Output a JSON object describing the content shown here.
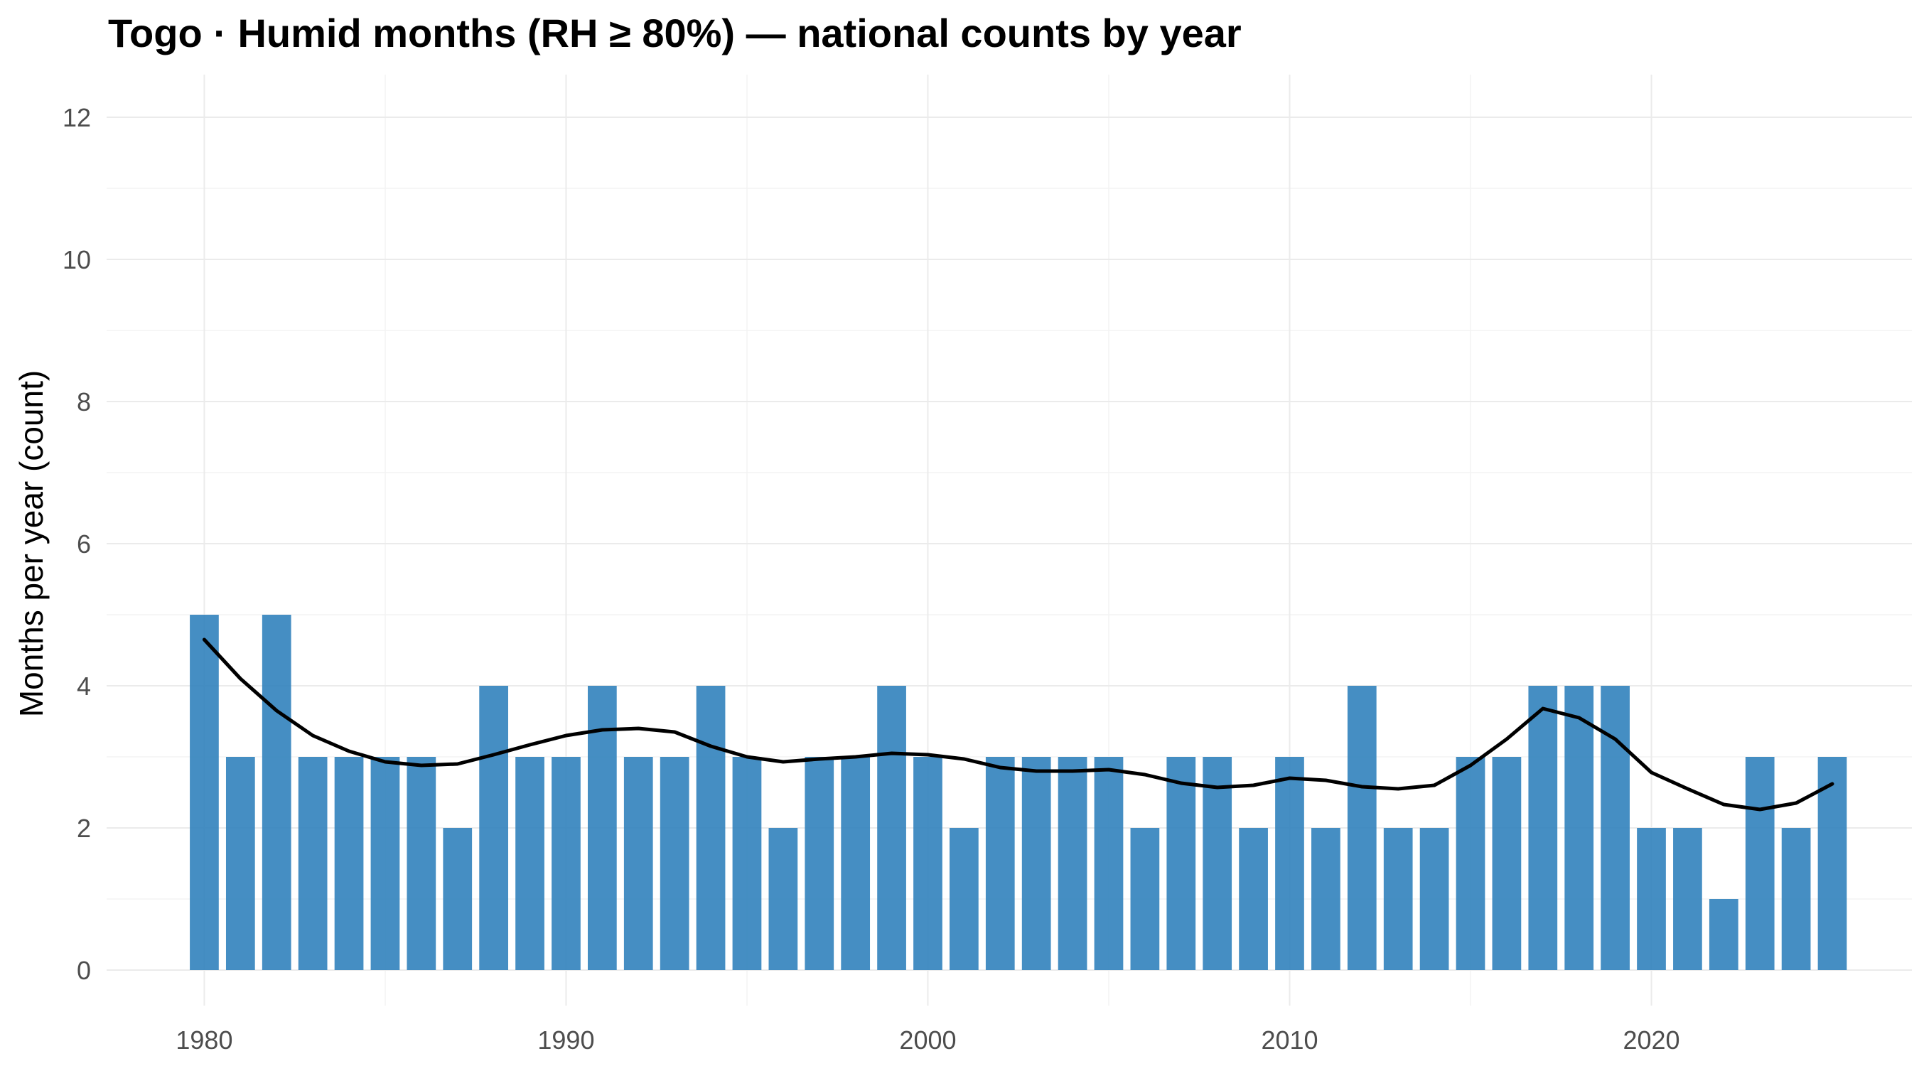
{
  "chart_data": {
    "type": "bar",
    "title": "Togo · Humid months (RH ≥ 80%) — national counts by year",
    "ylabel": "Months per year (count)",
    "xlabel": "",
    "xlim": [
      1977.3,
      2027.2
    ],
    "ylim": [
      -0.5,
      12.6
    ],
    "x_ticks": [
      1980,
      1990,
      2000,
      2010,
      2020
    ],
    "y_ticks": [
      0,
      2,
      4,
      6,
      8,
      10,
      12
    ],
    "grid": true,
    "legend": "none",
    "colors": {
      "bar": "#3182bd",
      "trend": "#000000"
    },
    "series": [
      {
        "values": [
          {
            "x": 1980,
            "y": 5
          },
          {
            "x": 1981,
            "y": 3
          },
          {
            "x": 1982,
            "y": 5
          },
          {
            "x": 1983,
            "y": 3
          },
          {
            "x": 1984,
            "y": 3
          },
          {
            "x": 1985,
            "y": 3
          },
          {
            "x": 1986,
            "y": 3
          },
          {
            "x": 1987,
            "y": 2
          },
          {
            "x": 1988,
            "y": 4
          },
          {
            "x": 1989,
            "y": 3
          },
          {
            "x": 1990,
            "y": 3
          },
          {
            "x": 1991,
            "y": 4
          },
          {
            "x": 1992,
            "y": 3
          },
          {
            "x": 1993,
            "y": 3
          },
          {
            "x": 1994,
            "y": 4
          },
          {
            "x": 1995,
            "y": 3
          },
          {
            "x": 1996,
            "y": 2
          },
          {
            "x": 1997,
            "y": 3
          },
          {
            "x": 1998,
            "y": 3
          },
          {
            "x": 1999,
            "y": 4
          },
          {
            "x": 2000,
            "y": 3
          },
          {
            "x": 2001,
            "y": 2
          },
          {
            "x": 2002,
            "y": 3
          },
          {
            "x": 2003,
            "y": 3
          },
          {
            "x": 2004,
            "y": 3
          },
          {
            "x": 2005,
            "y": 3
          },
          {
            "x": 2006,
            "y": 2
          },
          {
            "x": 2007,
            "y": 3
          },
          {
            "x": 2008,
            "y": 3
          },
          {
            "x": 2009,
            "y": 2
          },
          {
            "x": 2010,
            "y": 3
          },
          {
            "x": 2011,
            "y": 2
          },
          {
            "x": 2012,
            "y": 4
          },
          {
            "x": 2013,
            "y": 2
          },
          {
            "x": 2014,
            "y": 2
          },
          {
            "x": 2015,
            "y": 3
          },
          {
            "x": 2016,
            "y": 3
          },
          {
            "x": 2017,
            "y": 4
          },
          {
            "x": 2018,
            "y": 4
          },
          {
            "x": 2019,
            "y": 4
          },
          {
            "x": 2020,
            "y": 2
          },
          {
            "x": 2021,
            "y": 2
          },
          {
            "x": 2022,
            "y": 1
          },
          {
            "x": 2023,
            "y": 3
          },
          {
            "x": 2024,
            "y": 2
          },
          {
            "x": 2025,
            "y": 3
          }
        ]
      }
    ],
    "trend": [
      {
        "x": 1980,
        "y": 4.65
      },
      {
        "x": 1981,
        "y": 4.1
      },
      {
        "x": 1982,
        "y": 3.65
      },
      {
        "x": 1983,
        "y": 3.3
      },
      {
        "x": 1984,
        "y": 3.08
      },
      {
        "x": 1985,
        "y": 2.93
      },
      {
        "x": 1986,
        "y": 2.88
      },
      {
        "x": 1987,
        "y": 2.9
      },
      {
        "x": 1988,
        "y": 3.03
      },
      {
        "x": 1989,
        "y": 3.17
      },
      {
        "x": 1990,
        "y": 3.3
      },
      {
        "x": 1991,
        "y": 3.38
      },
      {
        "x": 1992,
        "y": 3.4
      },
      {
        "x": 1993,
        "y": 3.35
      },
      {
        "x": 1994,
        "y": 3.15
      },
      {
        "x": 1995,
        "y": 3.0
      },
      {
        "x": 1996,
        "y": 2.93
      },
      {
        "x": 1997,
        "y": 2.97
      },
      {
        "x": 1998,
        "y": 3.0
      },
      {
        "x": 1999,
        "y": 3.05
      },
      {
        "x": 2000,
        "y": 3.03
      },
      {
        "x": 2001,
        "y": 2.97
      },
      {
        "x": 2002,
        "y": 2.85
      },
      {
        "x": 2003,
        "y": 2.8
      },
      {
        "x": 2004,
        "y": 2.8
      },
      {
        "x": 2005,
        "y": 2.82
      },
      {
        "x": 2006,
        "y": 2.75
      },
      {
        "x": 2007,
        "y": 2.63
      },
      {
        "x": 2008,
        "y": 2.57
      },
      {
        "x": 2009,
        "y": 2.6
      },
      {
        "x": 2010,
        "y": 2.7
      },
      {
        "x": 2011,
        "y": 2.67
      },
      {
        "x": 2012,
        "y": 2.58
      },
      {
        "x": 2013,
        "y": 2.55
      },
      {
        "x": 2014,
        "y": 2.6
      },
      {
        "x": 2015,
        "y": 2.88
      },
      {
        "x": 2016,
        "y": 3.25
      },
      {
        "x": 2017,
        "y": 3.68
      },
      {
        "x": 2018,
        "y": 3.55
      },
      {
        "x": 2019,
        "y": 3.25
      },
      {
        "x": 2020,
        "y": 2.78
      },
      {
        "x": 2021,
        "y": 2.55
      },
      {
        "x": 2022,
        "y": 2.33
      },
      {
        "x": 2023,
        "y": 2.26
      },
      {
        "x": 2024,
        "y": 2.35
      },
      {
        "x": 2025,
        "y": 2.62
      }
    ]
  }
}
